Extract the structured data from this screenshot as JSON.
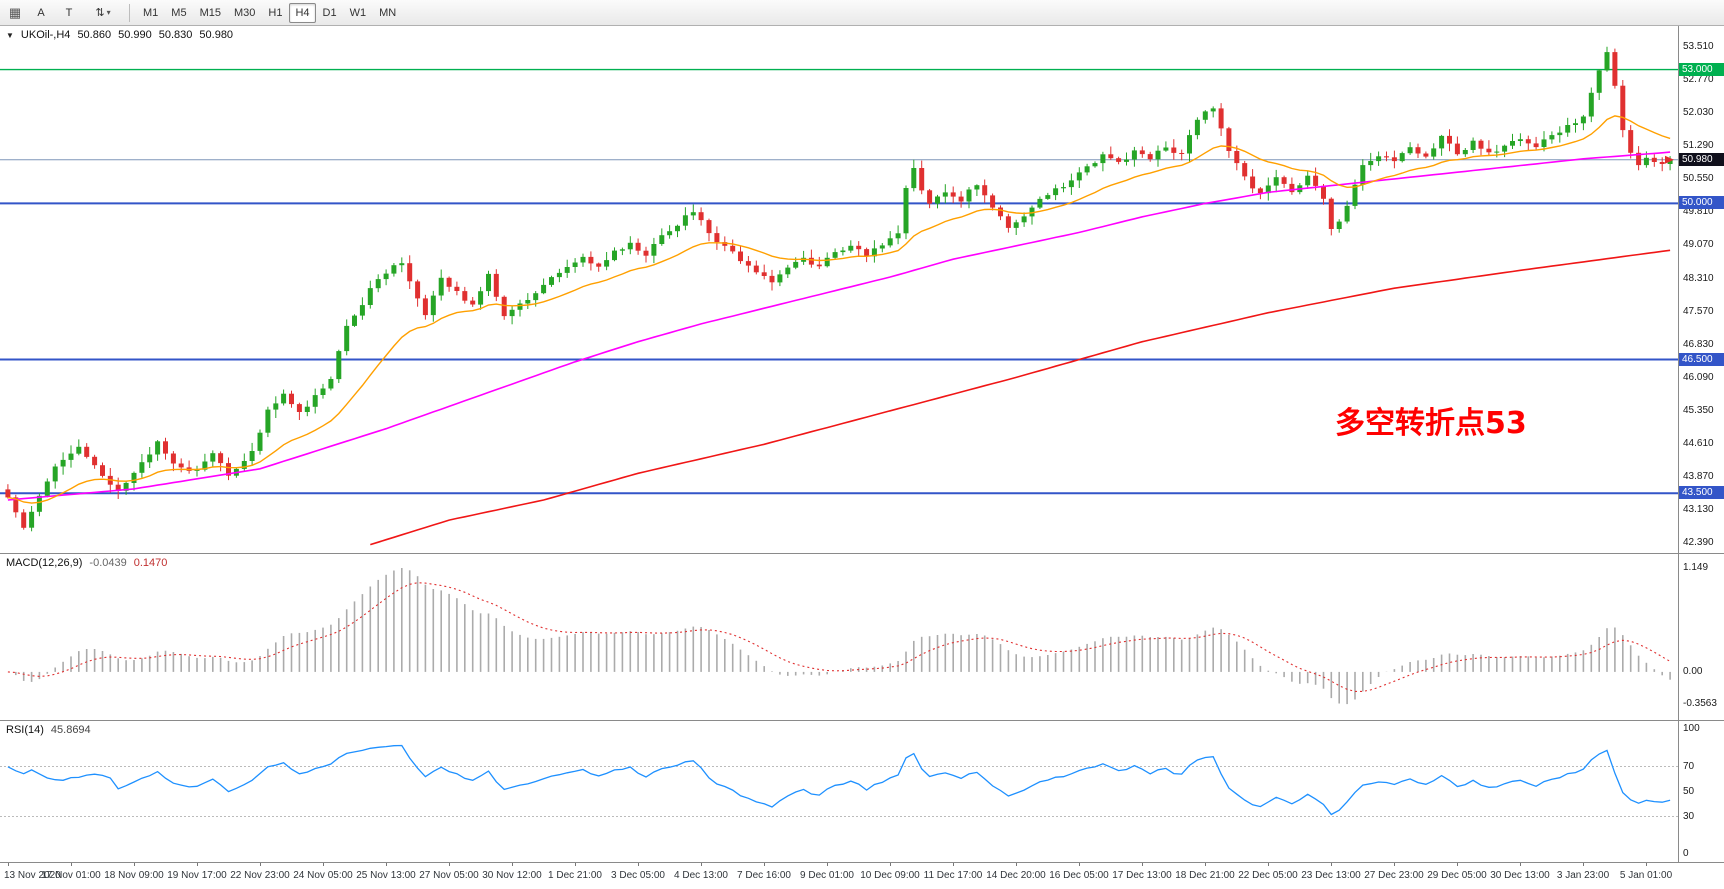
{
  "toolbar": {
    "cursor_button": "A",
    "text_button": "T",
    "timeframes": [
      "M1",
      "M5",
      "M15",
      "M30",
      "H1",
      "H4",
      "D1",
      "W1",
      "MN"
    ],
    "active_timeframe": "H4"
  },
  "main_chart": {
    "symbol_period": "UKOil-,H4",
    "open": "50.860",
    "high": "50.990",
    "low": "50.830",
    "close": "50.980",
    "annotation": "多空转折点53",
    "annotation_color": "#FF0000"
  },
  "macd_panel": {
    "title": "MACD(12,26,9)",
    "main_value": "-0.0439",
    "signal_value": "0.1470"
  },
  "rsi_panel": {
    "title": "RSI(14)",
    "value": "45.8694"
  },
  "chart_data": {
    "type": "candlestick",
    "symbol": "UKOil-",
    "period": "H4",
    "bars": 212,
    "bars_per_label": 8,
    "price_range": [
      42.3,
      53.55
    ],
    "price_ticks": [
      "53.510",
      "52.770",
      "52.030",
      "51.290",
      "50.550",
      "49.810",
      "49.070",
      "48.310",
      "47.570",
      "46.830",
      "46.090",
      "45.350",
      "44.610",
      "43.870",
      "43.130",
      "42.390"
    ],
    "levels": [
      {
        "price": 53.0,
        "label": "53.000",
        "color": "#00B050",
        "width": 1.4
      },
      {
        "price": 50.0,
        "label": "50.000",
        "color": "#3355C8",
        "width": 2
      },
      {
        "price": 46.5,
        "label": "46.500",
        "color": "#3355C8",
        "width": 2
      },
      {
        "price": 43.5,
        "label": "43.500",
        "color": "#3355C8",
        "width": 2
      }
    ],
    "current_price": {
      "value": 50.98,
      "label": "50.980",
      "line_color": "#7E96B8",
      "badge_color": "#10101C"
    },
    "close_anchors": [
      [
        0,
        43.4
      ],
      [
        2,
        42.78
      ],
      [
        4,
        43.5
      ],
      [
        6,
        44.15
      ],
      [
        9,
        44.5
      ],
      [
        11,
        44.1
      ],
      [
        14,
        43.55
      ],
      [
        16,
        43.95
      ],
      [
        19,
        44.65
      ],
      [
        21,
        44.15
      ],
      [
        24,
        44.0
      ],
      [
        26,
        44.45
      ],
      [
        28,
        43.95
      ],
      [
        31,
        44.4
      ],
      [
        33,
        45.35
      ],
      [
        35,
        45.75
      ],
      [
        37,
        45.3
      ],
      [
        39,
        45.7
      ],
      [
        41,
        46.1
      ],
      [
        43,
        47.3
      ],
      [
        45,
        47.75
      ],
      [
        47,
        48.35
      ],
      [
        50,
        48.7
      ],
      [
        52,
        47.9
      ],
      [
        53,
        47.45
      ],
      [
        55,
        48.3
      ],
      [
        57,
        48.05
      ],
      [
        59,
        47.7
      ],
      [
        61,
        48.45
      ],
      [
        63,
        47.45
      ],
      [
        65,
        47.7
      ],
      [
        67,
        48.0
      ],
      [
        69,
        48.3
      ],
      [
        71,
        48.55
      ],
      [
        73,
        48.75
      ],
      [
        75,
        48.55
      ],
      [
        77,
        48.9
      ],
      [
        79,
        49.1
      ],
      [
        81,
        48.85
      ],
      [
        83,
        49.3
      ],
      [
        85,
        49.55
      ],
      [
        87,
        49.85
      ],
      [
        89,
        49.3
      ],
      [
        91,
        49.0
      ],
      [
        93,
        48.75
      ],
      [
        95,
        48.5
      ],
      [
        97,
        48.25
      ],
      [
        99,
        48.6
      ],
      [
        101,
        48.75
      ],
      [
        103,
        48.55
      ],
      [
        105,
        48.9
      ],
      [
        107,
        49.1
      ],
      [
        109,
        48.85
      ],
      [
        111,
        49.05
      ],
      [
        113,
        49.3
      ],
      [
        114,
        50.3
      ],
      [
        115,
        50.75
      ],
      [
        117,
        49.95
      ],
      [
        119,
        50.3
      ],
      [
        121,
        50.1
      ],
      [
        123,
        50.45
      ],
      [
        125,
        49.95
      ],
      [
        127,
        49.5
      ],
      [
        129,
        49.65
      ],
      [
        131,
        50.05
      ],
      [
        133,
        50.3
      ],
      [
        135,
        50.55
      ],
      [
        137,
        50.8
      ],
      [
        139,
        51.1
      ],
      [
        141,
        50.9
      ],
      [
        143,
        51.15
      ],
      [
        145,
        51.0
      ],
      [
        147,
        51.25
      ],
      [
        149,
        51.1
      ],
      [
        151,
        51.9
      ],
      [
        153,
        52.15
      ],
      [
        155,
        51.2
      ],
      [
        157,
        50.55
      ],
      [
        159,
        50.2
      ],
      [
        161,
        50.55
      ],
      [
        163,
        50.3
      ],
      [
        165,
        50.6
      ],
      [
        167,
        50.15
      ],
      [
        168,
        49.4
      ],
      [
        170,
        49.9
      ],
      [
        172,
        50.85
      ],
      [
        174,
        51.1
      ],
      [
        176,
        50.9
      ],
      [
        178,
        51.25
      ],
      [
        180,
        51.05
      ],
      [
        182,
        51.5
      ],
      [
        184,
        51.15
      ],
      [
        186,
        51.35
      ],
      [
        188,
        51.1
      ],
      [
        190,
        51.3
      ],
      [
        192,
        51.45
      ],
      [
        194,
        51.3
      ],
      [
        196,
        51.55
      ],
      [
        198,
        51.7
      ],
      [
        200,
        51.9
      ],
      [
        202,
        53.0
      ],
      [
        203,
        53.35
      ],
      [
        204,
        52.6
      ],
      [
        205,
        51.7
      ],
      [
        206,
        51.15
      ],
      [
        207,
        50.85
      ],
      [
        208,
        51.05
      ],
      [
        209,
        50.9
      ],
      [
        211,
        50.98
      ]
    ],
    "ma_fast_period": 18,
    "ma_mid_anchors": [
      [
        0,
        43.35
      ],
      [
        16,
        43.6
      ],
      [
        32,
        44.05
      ],
      [
        48,
        44.95
      ],
      [
        56,
        45.45
      ],
      [
        64,
        45.95
      ],
      [
        72,
        46.45
      ],
      [
        80,
        46.9
      ],
      [
        88,
        47.3
      ],
      [
        96,
        47.65
      ],
      [
        104,
        48.0
      ],
      [
        112,
        48.35
      ],
      [
        120,
        48.75
      ],
      [
        128,
        49.05
      ],
      [
        136,
        49.35
      ],
      [
        144,
        49.7
      ],
      [
        152,
        50.0
      ],
      [
        160,
        50.25
      ],
      [
        168,
        50.4
      ],
      [
        176,
        50.55
      ],
      [
        184,
        50.7
      ],
      [
        192,
        50.85
      ],
      [
        200,
        51.0
      ],
      [
        211,
        51.15
      ]
    ],
    "ma_slow_anchors": [
      [
        46,
        42.35
      ],
      [
        56,
        42.9
      ],
      [
        68,
        43.35
      ],
      [
        80,
        43.95
      ],
      [
        96,
        44.6
      ],
      [
        112,
        45.35
      ],
      [
        128,
        46.1
      ],
      [
        144,
        46.9
      ],
      [
        160,
        47.55
      ],
      [
        176,
        48.1
      ],
      [
        192,
        48.5
      ],
      [
        211,
        48.95
      ]
    ],
    "colors": {
      "up": "#26A526",
      "down": "#E03030",
      "ma_fast": "#FFA000",
      "ma_mid": "#FF00FF",
      "ma_slow": "#F01616",
      "macd_hist": "#ABABAB",
      "macd_signal": "#E03030",
      "rsi": "#1E90FF",
      "rsi_levels": "#BBBBBB"
    },
    "time_labels": [
      "13 Nov 2020",
      "17 Nov 01:00",
      "18 Nov 09:00",
      "19 Nov 17:00",
      "22 Nov 23:00",
      "24 Nov 05:00",
      "25 Nov 13:00",
      "27 Nov 05:00",
      "30 Nov 12:00",
      "1 Dec 21:00",
      "3 Dec 05:00",
      "4 Dec 13:00",
      "7 Dec 16:00",
      "9 Dec 01:00",
      "10 Dec 09:00",
      "11 Dec 17:00",
      "14 Dec 20:00",
      "16 Dec 05:00",
      "17 Dec 13:00",
      "18 Dec 21:00",
      "22 Dec 05:00",
      "23 Dec 13:00",
      "27 Dec 23:00",
      "29 Dec 05:00",
      "30 Dec 13:00",
      "3 Jan 23:00",
      "5 Jan 01:00"
    ],
    "macd": {
      "params": [
        12,
        26,
        9
      ],
      "axis_labels": [
        "1.149",
        "0.00",
        "-0.3563"
      ],
      "axis_values": [
        1.149,
        0,
        -0.3563
      ],
      "hist_max": 1.149,
      "hist_min": -0.3563
    },
    "rsi": {
      "period": 14,
      "axis_labels": [
        [
          100,
          "100"
        ],
        [
          70,
          "70"
        ],
        [
          50,
          "50"
        ],
        [
          30,
          "30"
        ],
        [
          0,
          "0"
        ]
      ],
      "levels": [
        70,
        30
      ],
      "last": 45.8694
    }
  }
}
